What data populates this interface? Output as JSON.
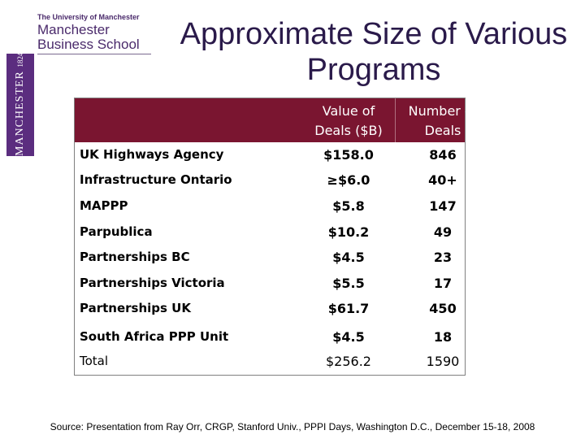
{
  "logo": {
    "university": "The University of Manchester",
    "school_line1": "Manchester",
    "school_line2": "Business School",
    "crest_name": "MANCHESTER",
    "crest_year": "1824"
  },
  "title": "Approximate Size of Various Programs",
  "table": {
    "headers": [
      "Value of Deals ($B)",
      "Number of Deals"
    ],
    "header_line1": [
      "Value of",
      "Number of"
    ],
    "header_line2": [
      "Deals ($B)",
      "Deals"
    ],
    "rows": [
      {
        "name": "UK Highways Agency",
        "value": "$158.0",
        "count": "846"
      },
      {
        "name": "Infrastructure Ontario",
        "value": "≥$6.0",
        "count": "40+"
      },
      {
        "name": "MAPPP",
        "value": "$5.8",
        "count": "147"
      },
      {
        "name": "Parpublica",
        "value": "$10.2",
        "count": "49"
      },
      {
        "name": "Partnerships BC",
        "value": "$4.5",
        "count": "23"
      },
      {
        "name": "Partnerships Victoria",
        "value": "$5.5",
        "count": "17"
      },
      {
        "name": "Partnerships UK",
        "value": "$61.7",
        "count": "450"
      },
      {
        "name": "South Africa PPP Unit",
        "value": "$4.5",
        "count": "18"
      }
    ],
    "total": {
      "name": "Total",
      "value": "$256.2",
      "count": "1590"
    }
  },
  "colors": {
    "header_band": "#7a1530",
    "crest": "#5b2d7f"
  },
  "source": "Source: Presentation from Ray Orr, CRGP, Stanford Univ., PPPI Days, Washington D.C., December 15-18, 2008"
}
